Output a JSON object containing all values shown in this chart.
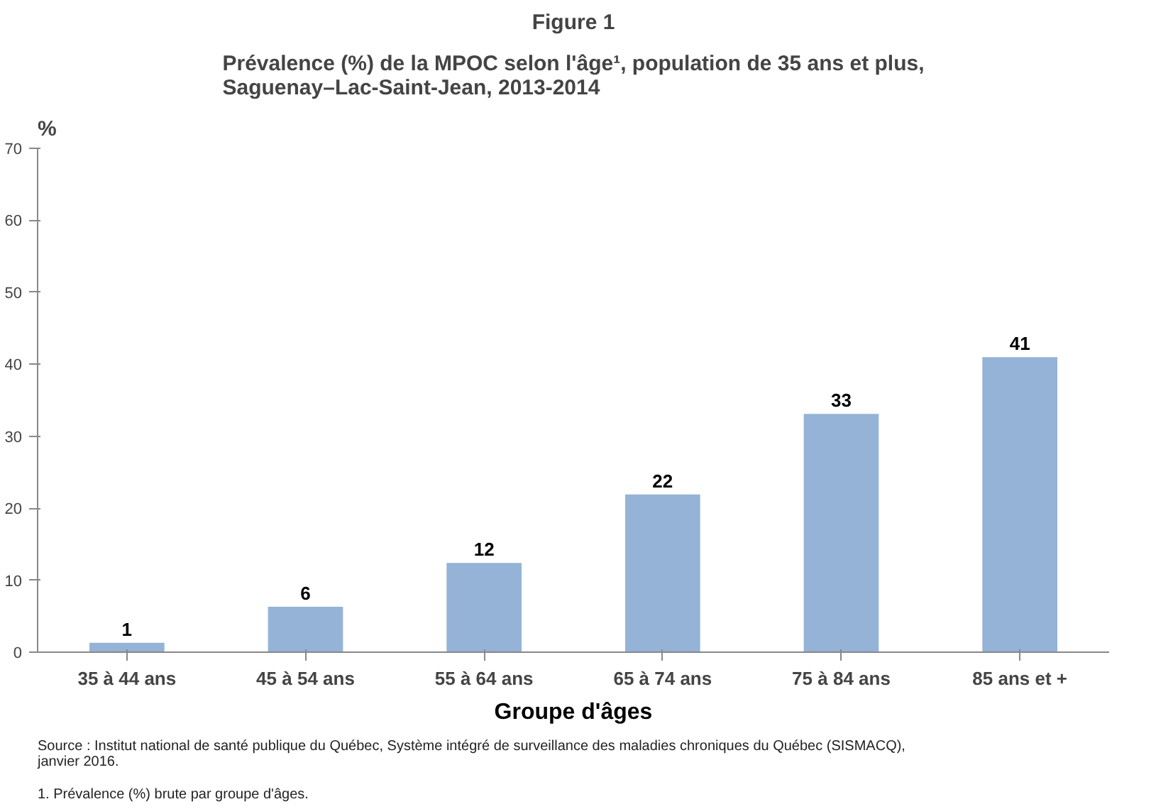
{
  "chart_data": {
    "type": "bar",
    "title": "Figure 1",
    "subtitle": "Prévalence (%) de la MPOC selon l'âge¹, population de 35 ans et plus,\nSaguenay–Lac-Saint-Jean, 2013-2014",
    "xlabel": "Groupe d'âges",
    "ylabel": "%",
    "categories": [
      "35 à 44 ans",
      "45 à 54 ans",
      "55 à 64 ans",
      "65 à 74 ans",
      "75 à 84 ans",
      "85 ans et +"
    ],
    "values": [
      1.3,
      6.3,
      12.4,
      21.9,
      33.1,
      41.0
    ],
    "value_labels": [
      "1",
      "6",
      "12",
      "22",
      "33",
      "41"
    ],
    "color": "#95b3d7",
    "ylim": [
      0,
      70
    ],
    "yticks": [
      0,
      10,
      20,
      30,
      40,
      50,
      60,
      70
    ],
    "grid": false,
    "annotations": [
      "Source : Institut national de santé publique du Québec, Système intégré de surveillance des maladies chroniques du Québec (SISMACQ),\njanvier 2016.",
      "1. Prévalence (%) brute par groupe d'âges."
    ]
  }
}
